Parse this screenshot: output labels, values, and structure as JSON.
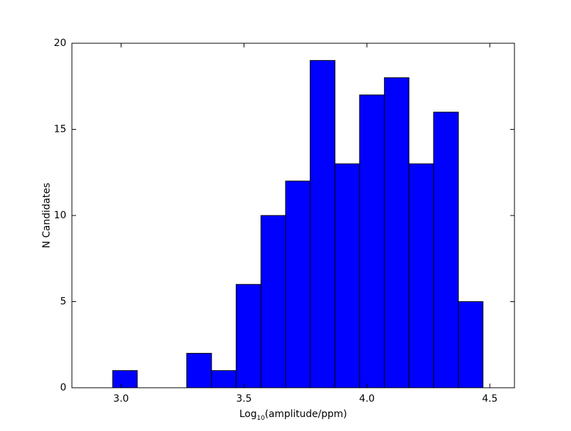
{
  "chart_data": {
    "type": "histogram",
    "xlabel": [
      "Log",
      "10",
      "(amplitude/ppm)"
    ],
    "ylabel": "N Candidates",
    "bins": [
      2.966,
      3.066,
      3.167,
      3.267,
      3.368,
      3.468,
      3.569,
      3.669,
      3.769,
      3.87,
      3.97,
      4.071,
      4.171,
      4.271,
      4.372,
      4.472
    ],
    "counts": [
      1,
      0,
      0,
      2,
      1,
      6,
      10,
      12,
      19,
      13,
      17,
      18,
      13,
      16,
      5
    ],
    "color": "#0000ff",
    "xlim": [
      2.8,
      4.6
    ],
    "xticks": [
      {
        "value": 3,
        "label": "3.0"
      },
      {
        "value": 3.5,
        "label": "3.5"
      },
      {
        "value": 4,
        "label": "4.0"
      },
      {
        "value": 4.5,
        "label": "4.5"
      }
    ],
    "ylim": [
      0,
      20
    ],
    "yticks": [
      0,
      5,
      10,
      15,
      20
    ],
    "grid": false
  }
}
